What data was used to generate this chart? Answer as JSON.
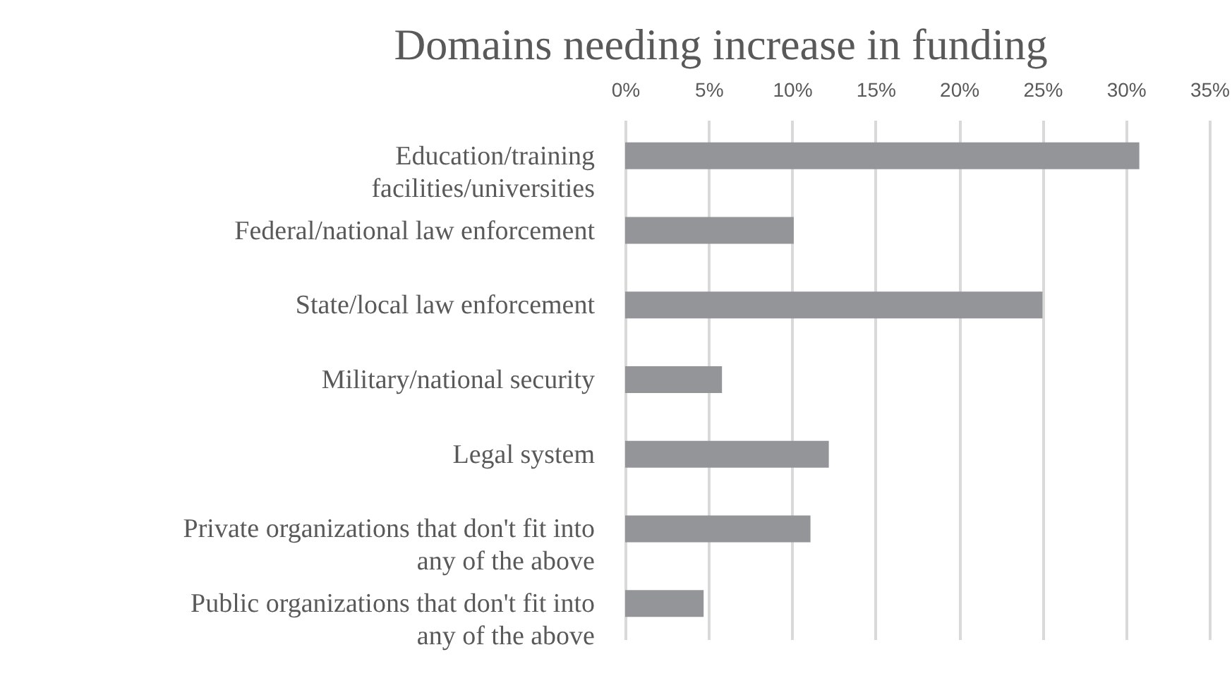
{
  "chart_data": {
    "type": "bar",
    "orientation": "horizontal",
    "title": "Domains needing increase in funding",
    "categories": [
      "Education/training facilities/universities",
      "Federal/national law enforcement",
      "State/local law enforcement",
      "Military/national security",
      "Legal system",
      "Private organizations that don't fit into any of the above",
      "Public organizations that don't fit into any of the above"
    ],
    "values": [
      30.8,
      10.1,
      25.0,
      5.8,
      12.2,
      11.1,
      4.7
    ],
    "color": "#939598",
    "xlim": [
      0,
      35
    ],
    "xticks": [
      {
        "value": 0,
        "label": "0%"
      },
      {
        "value": 5,
        "label": "5%"
      },
      {
        "value": 10,
        "label": "10%"
      },
      {
        "value": 15,
        "label": "15%"
      },
      {
        "value": 20,
        "label": "20%"
      },
      {
        "value": 25,
        "label": "25%"
      },
      {
        "value": 30,
        "label": "30%"
      },
      {
        "value": 35,
        "label": "35%"
      }
    ],
    "grid": true
  }
}
